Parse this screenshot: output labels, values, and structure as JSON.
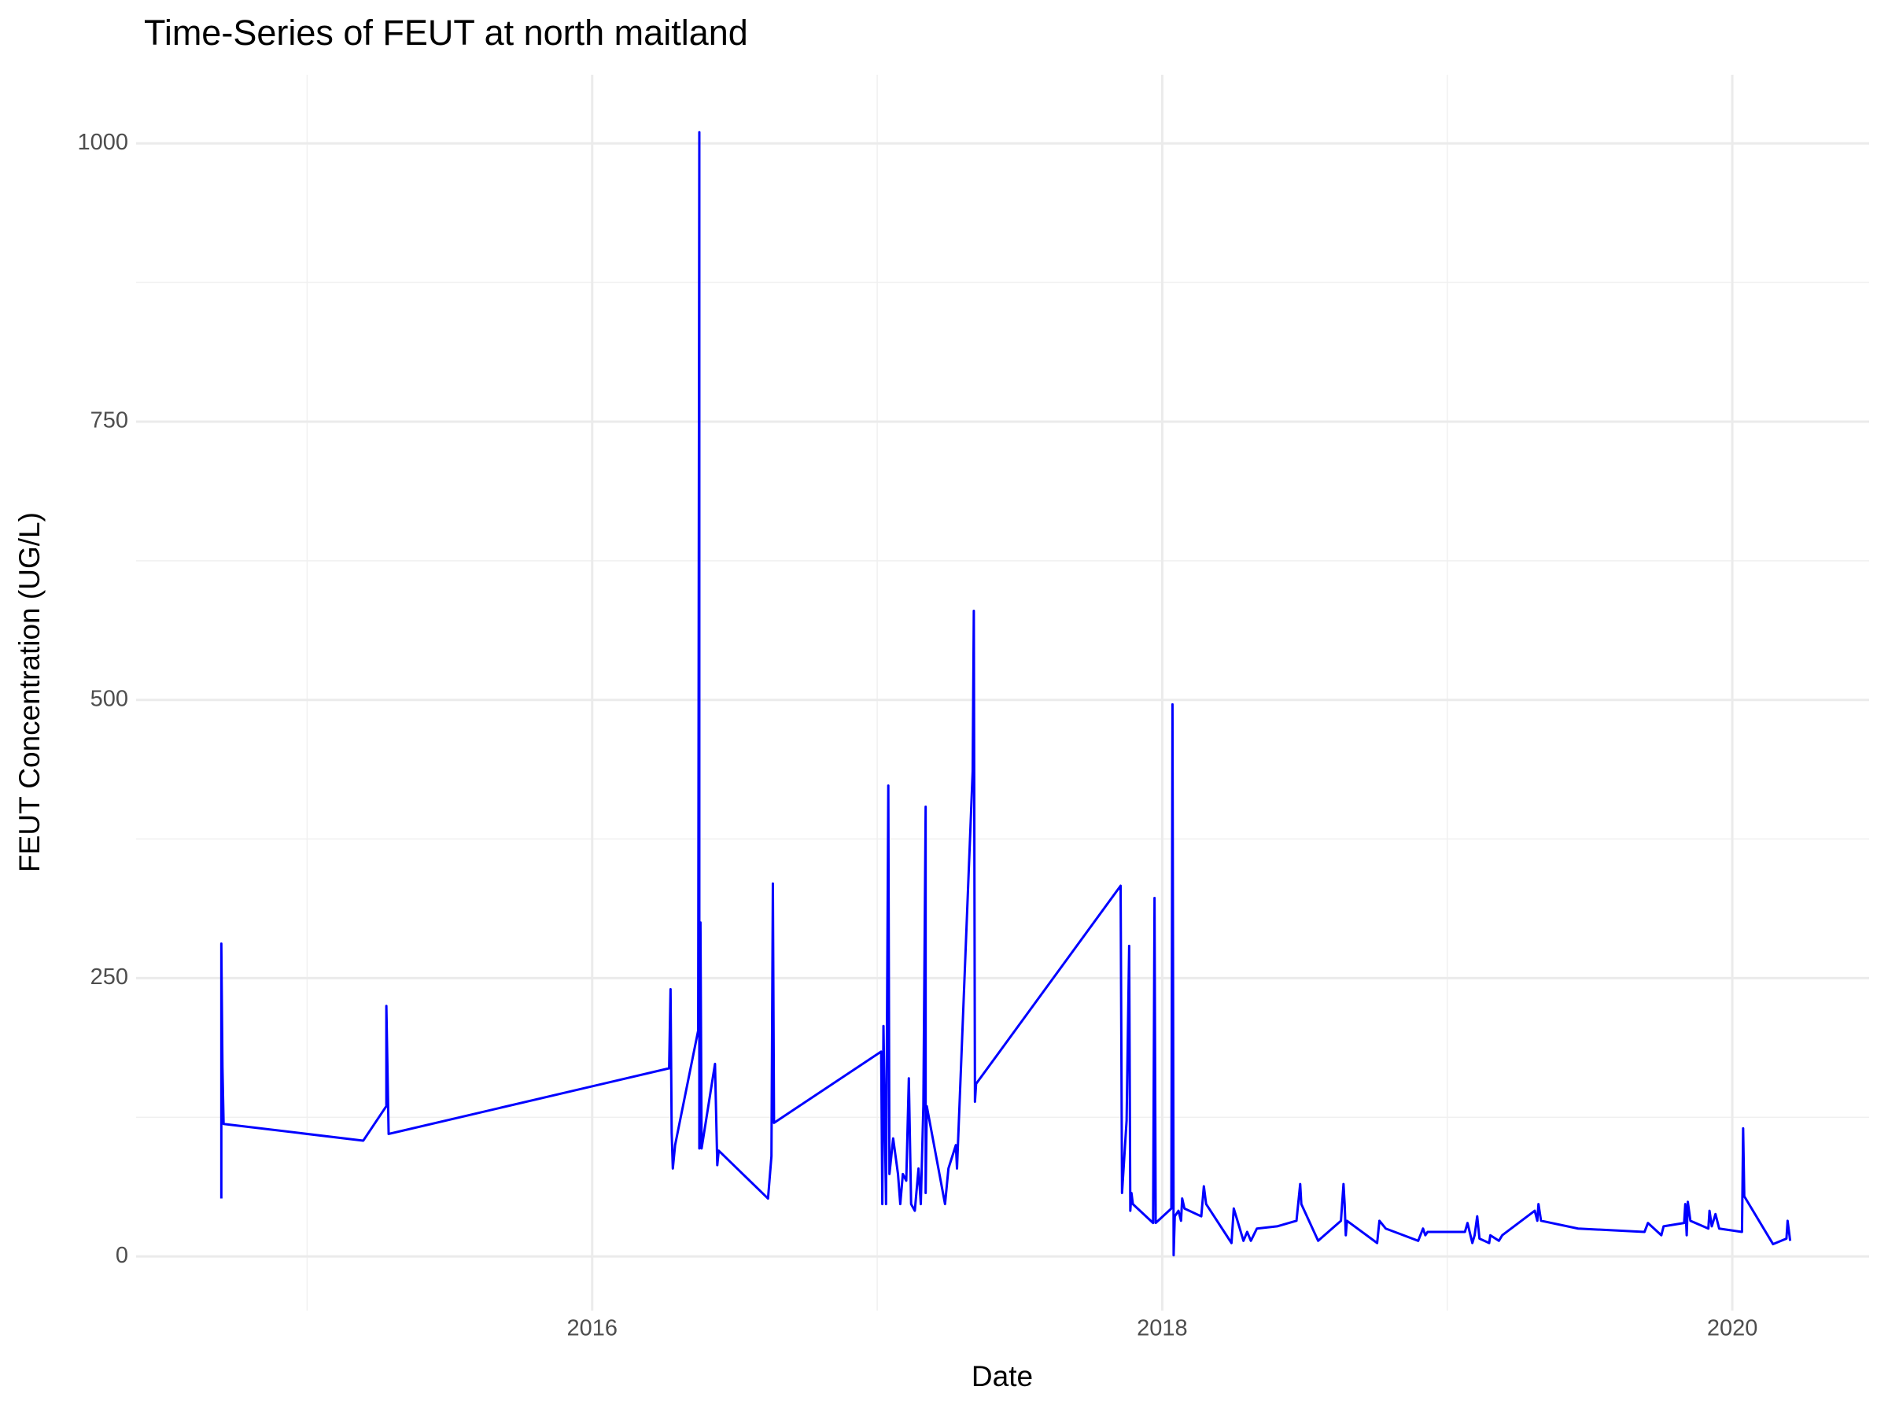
{
  "chart_data": {
    "type": "line",
    "title": "Time-Series of FEUT at north maitland",
    "xlabel": "Date",
    "ylabel": "FEUT Concentration (UG/L)",
    "xlim": [
      2014.4,
      2020.48
    ],
    "ylim": [
      -48.7,
      1061.7
    ],
    "xticks": [
      2016,
      2018,
      2020
    ],
    "yticks": [
      0,
      250,
      500,
      750,
      1000
    ],
    "minor_xticks": [
      2015,
      2017,
      2019
    ],
    "minor_yticks": [
      125,
      375,
      625,
      875
    ],
    "grid": true,
    "series": [
      {
        "color": "#0000ff",
        "x": [
          2014.699,
          2014.699,
          2014.703,
          2014.707,
          2015.197,
          2015.278,
          2015.278,
          2015.286,
          2016.27,
          2016.275,
          2016.279,
          2016.283,
          2016.291,
          2016.372,
          2016.376,
          2016.376,
          2016.38,
          2016.384,
          2016.431,
          2016.439,
          2016.444,
          2016.617,
          2016.629,
          2016.634,
          2016.638,
          2017.014,
          2017.018,
          2017.022,
          2017.031,
          2017.039,
          2017.043,
          2017.056,
          2017.073,
          2017.081,
          2017.09,
          2017.102,
          2017.111,
          2017.119,
          2017.132,
          2017.145,
          2017.153,
          2017.162,
          2017.17,
          2017.17,
          2017.174,
          2017.238,
          2017.25,
          2017.276,
          2017.28,
          2017.335,
          2017.339,
          2017.343,
          2017.347,
          2017.854,
          2017.859,
          2017.875,
          2017.884,
          2017.888,
          2017.892,
          2017.897,
          2017.968,
          2017.973,
          2017.977,
          2018.032,
          2018.036,
          2018.04,
          2018.044,
          2018.057,
          2018.066,
          2018.07,
          2018.078,
          2018.137,
          2018.146,
          2018.154,
          2018.243,
          2018.251,
          2018.264,
          2018.285,
          2018.298,
          2018.311,
          2018.332,
          2018.403,
          2018.471,
          2018.484,
          2018.488,
          2018.547,
          2018.627,
          2018.636,
          2018.64,
          2018.644,
          2018.648,
          2018.754,
          2018.762,
          2018.784,
          2018.898,
          2018.915,
          2018.923,
          2018.931,
          2019.062,
          2019.071,
          2019.088,
          2019.096,
          2019.105,
          2019.113,
          2019.147,
          2019.151,
          2019.181,
          2019.193,
          2019.307,
          2019.316,
          2019.32,
          2019.329,
          2019.459,
          2019.692,
          2019.704,
          2019.751,
          2019.759,
          2019.831,
          2019.835,
          2019.84,
          2019.844,
          2019.853,
          2019.916,
          2019.92,
          2019.928,
          2019.941,
          2019.954,
          2020.034,
          2020.038,
          2020.042,
          2020.143,
          2020.19,
          2020.194,
          2020.203
        ],
        "values": [
          52,
          281,
          170,
          119,
          104,
          135,
          225,
          110,
          169,
          240,
          111,
          79,
          100,
          203,
          1010,
          97,
          300,
          97,
          173,
          82,
          95,
          52,
          90,
          335,
          120,
          184,
          47,
          207,
          47,
          423,
          74,
          106,
          74,
          47,
          74,
          68,
          160,
          47,
          41,
          79,
          47,
          135,
          404,
          57,
          135,
          47,
          79,
          100,
          79,
          436,
          580,
          139,
          155,
          333,
          57,
          122,
          279,
          41,
          57,
          47,
          30,
          322,
          30,
          43,
          496,
          1,
          36,
          41,
          32,
          52,
          43,
          36,
          63,
          47,
          12,
          43,
          32,
          14,
          22,
          14,
          25,
          27,
          32,
          65,
          47,
          14,
          32,
          65,
          47,
          19,
          32,
          12,
          32,
          25,
          14,
          25,
          19,
          22,
          22,
          30,
          12,
          19,
          36,
          16,
          12,
          19,
          14,
          19,
          41,
          32,
          47,
          32,
          25,
          22,
          30,
          19,
          27,
          30,
          47,
          19,
          49,
          32,
          25,
          41,
          27,
          38,
          25,
          22,
          115,
          54,
          11,
          16,
          32,
          14
        ]
      }
    ]
  }
}
